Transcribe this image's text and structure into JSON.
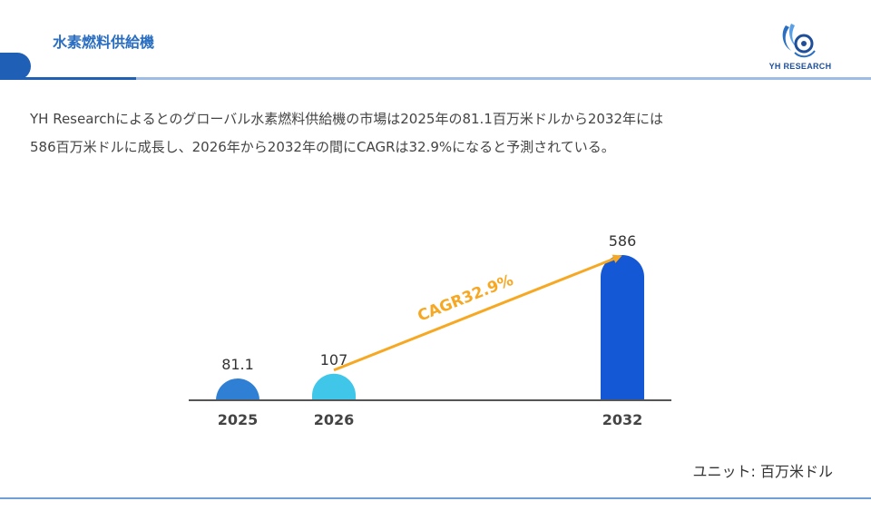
{
  "header": {
    "title": "水素燃料供給機",
    "logo_text": "YH RESEARCH"
  },
  "summary": {
    "line1": "YH Researchによるとのグローバル水素燃料供給機の市場は2025年の81.1百万米ドルから2032年には",
    "line2": "586百万米ドルに成長し、2026年から2032年の間にCAGRは32.9%になると予測されている。"
  },
  "unit_label": "ユニット: 百万米ドル",
  "chart_data": {
    "type": "bar",
    "categories": [
      "2025",
      "2026",
      "2032"
    ],
    "values": [
      81.1,
      107,
      586
    ],
    "value_labels": [
      "81.1",
      "107",
      "586"
    ],
    "annotation": "CAGR32.9%",
    "colors": [
      "#2f7fd4",
      "#3fc6e8",
      "#1558d6"
    ],
    "arrow_color": "#f7a823",
    "grid": false
  }
}
